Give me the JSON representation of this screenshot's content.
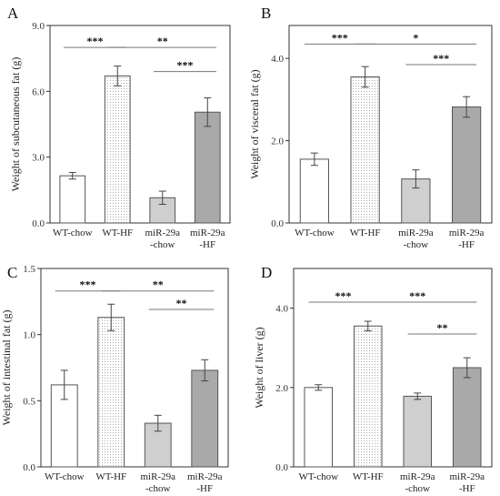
{
  "chart_data": [
    {
      "panel": "A",
      "type": "bar",
      "categories": [
        [
          "WT-chow"
        ],
        [
          "WT-HF"
        ],
        [
          "miR-29a",
          "-chow"
        ],
        [
          "miR-29a",
          "-HF"
        ]
      ],
      "values": [
        2.15,
        6.7,
        1.15,
        5.05
      ],
      "errors": [
        0.15,
        0.45,
        0.3,
        0.65
      ],
      "ylabel": "Weight of subcutaneous fat (g)",
      "ylim": [
        0,
        9.0
      ],
      "yticks": [
        "0.0",
        "3.0",
        "6.0",
        "9.0"
      ],
      "significance": [
        {
          "from": 0,
          "to": 1,
          "label": "***",
          "level": 8.0
        },
        {
          "from": 1,
          "to": 3,
          "label": "**",
          "level": 8.0
        },
        {
          "from": 2,
          "to": 3,
          "label": "***",
          "level": 6.9
        }
      ]
    },
    {
      "panel": "B",
      "type": "bar",
      "categories": [
        [
          "WT-chow"
        ],
        [
          "WT-HF"
        ],
        [
          "miR-29a",
          "-chow"
        ],
        [
          "miR-29a",
          "-HF"
        ]
      ],
      "values": [
        1.55,
        3.55,
        1.07,
        2.82
      ],
      "errors": [
        0.15,
        0.25,
        0.22,
        0.25
      ],
      "ylabel": "Weight of visceral fat (g)",
      "ylim": [
        0,
        4.8
      ],
      "yticks": [
        "0.0",
        "2.0",
        "4.0"
      ],
      "significance": [
        {
          "from": 0,
          "to": 1,
          "label": "***",
          "level": 4.35
        },
        {
          "from": 1,
          "to": 3,
          "label": "*",
          "level": 4.35
        },
        {
          "from": 2,
          "to": 3,
          "label": "***",
          "level": 3.85
        }
      ]
    },
    {
      "panel": "C",
      "type": "bar",
      "categories": [
        [
          "WT-chow"
        ],
        [
          "WT-HF"
        ],
        [
          "miR-29a",
          "-chow"
        ],
        [
          "miR-29a",
          "-HF"
        ]
      ],
      "values": [
        0.62,
        1.13,
        0.33,
        0.73
      ],
      "errors": [
        0.11,
        0.1,
        0.06,
        0.08
      ],
      "ylabel": "Weight of intestinal fat (g)",
      "ylim": [
        0,
        1.5
      ],
      "yticks": [
        "0.0",
        "0.5",
        "1.0",
        "1.5"
      ],
      "significance": [
        {
          "from": 0,
          "to": 1,
          "label": "***",
          "level": 1.33
        },
        {
          "from": 1,
          "to": 3,
          "label": "**",
          "level": 1.33
        },
        {
          "from": 2,
          "to": 3,
          "label": "**",
          "level": 1.19
        }
      ]
    },
    {
      "panel": "D",
      "type": "bar",
      "categories": [
        [
          "WT-chow"
        ],
        [
          "WT-HF"
        ],
        [
          "miR-29a",
          "-chow"
        ],
        [
          "miR-29a",
          "-HF"
        ]
      ],
      "values": [
        2.0,
        3.55,
        1.78,
        2.5
      ],
      "errors": [
        0.07,
        0.12,
        0.08,
        0.25
      ],
      "ylabel": "Weight of liver (g)",
      "ylim": [
        0,
        5.0
      ],
      "yticks": [
        "0.0",
        "2.0",
        "4.0"
      ],
      "significance": [
        {
          "from": 0,
          "to": 1,
          "label": "***",
          "level": 4.15
        },
        {
          "from": 1,
          "to": 3,
          "label": "***",
          "level": 4.15
        },
        {
          "from": 2,
          "to": 3,
          "label": "**",
          "level": 3.35
        }
      ]
    }
  ],
  "bar_style": {
    "fills": [
      "#ffffff",
      "pattern-dots",
      "#cfcfcf",
      "#a9a9a9"
    ],
    "stroke": "#555555"
  }
}
